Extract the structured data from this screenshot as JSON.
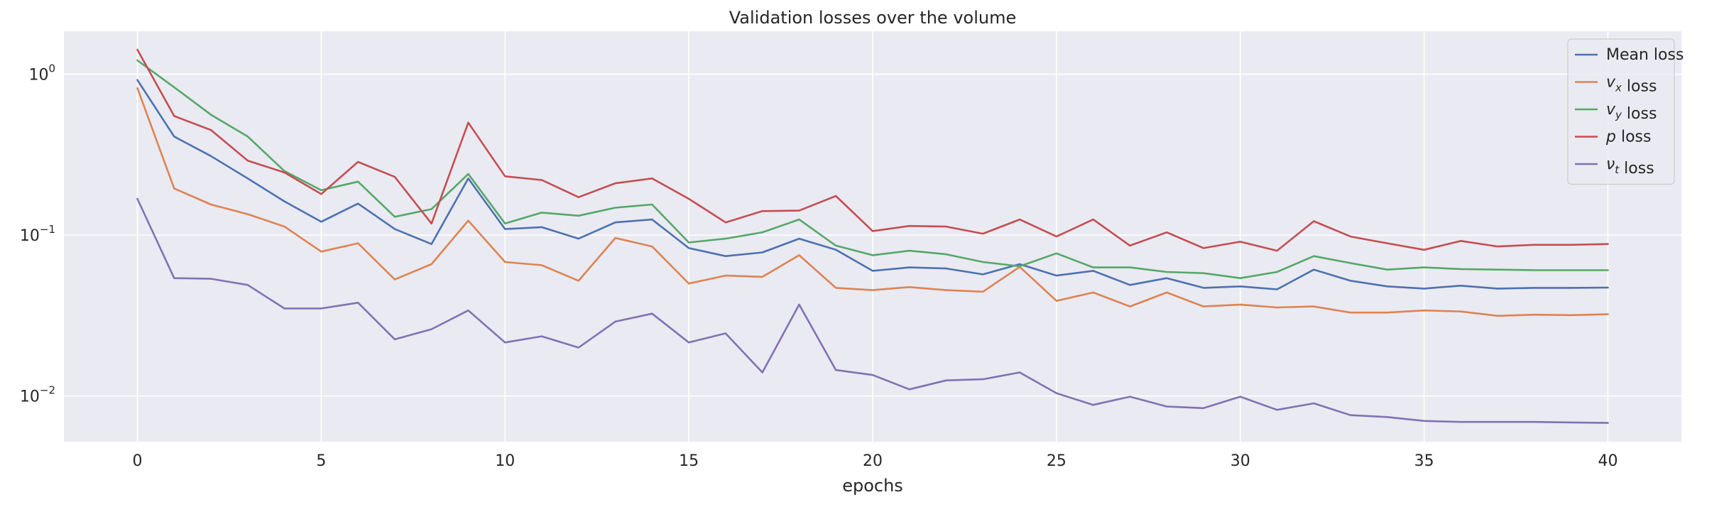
{
  "chart_data": {
    "type": "line",
    "title": "Validation losses over the volume",
    "xlabel": "epochs",
    "ylabel": "",
    "yscale": "log",
    "xlim": [
      -2,
      42
    ],
    "ylim": [
      0.0052,
      1.85
    ],
    "grid": true,
    "legend_position": "top-right",
    "xticks": [
      0,
      5,
      10,
      15,
      20,
      25,
      30,
      35,
      40
    ],
    "xtick_labels": [
      "0",
      "5",
      "10",
      "15",
      "20",
      "25",
      "30",
      "35",
      "40"
    ],
    "yticks": [
      1,
      0.1,
      0.01
    ],
    "ytick_labels": [
      {
        "base": "10",
        "exp": "0"
      },
      {
        "base": "10",
        "exp": "−1"
      },
      {
        "base": "10",
        "exp": "−2"
      }
    ],
    "x": [
      0,
      1,
      2,
      3,
      4,
      5,
      6,
      7,
      8,
      9,
      10,
      11,
      12,
      13,
      14,
      15,
      16,
      17,
      18,
      19,
      20,
      21,
      22,
      23,
      24,
      25,
      26,
      27,
      28,
      29,
      30,
      31,
      32,
      33,
      34,
      35,
      36,
      37,
      38,
      39,
      40
    ],
    "series": [
      {
        "name": "Mean loss",
        "legend_parts": [
          {
            "t": "Mean loss",
            "italic": false,
            "sub": ""
          }
        ],
        "color": "#4c72b0",
        "values": [
          0.92,
          0.41,
          0.31,
          0.225,
          0.162,
          0.121,
          0.157,
          0.109,
          0.088,
          0.225,
          0.109,
          0.112,
          0.095,
          0.12,
          0.125,
          0.083,
          0.074,
          0.078,
          0.095,
          0.081,
          0.06,
          0.063,
          0.062,
          0.057,
          0.066,
          0.056,
          0.06,
          0.049,
          0.054,
          0.047,
          0.048,
          0.046,
          0.061,
          0.052,
          0.048,
          0.0465,
          0.0485,
          0.0465,
          0.047,
          0.047,
          0.0472
        ]
      },
      {
        "name": "v_x loss",
        "legend_parts": [
          {
            "t": "v",
            "italic": true,
            "sub": "x"
          },
          {
            "t": " loss",
            "italic": false,
            "sub": ""
          }
        ],
        "color": "#dd8452",
        "values": [
          0.82,
          0.195,
          0.155,
          0.135,
          0.113,
          0.079,
          0.089,
          0.053,
          0.066,
          0.123,
          0.068,
          0.065,
          0.052,
          0.096,
          0.085,
          0.05,
          0.056,
          0.055,
          0.075,
          0.047,
          0.0455,
          0.0475,
          0.0455,
          0.0445,
          0.0635,
          0.039,
          0.044,
          0.036,
          0.044,
          0.036,
          0.037,
          0.0355,
          0.036,
          0.033,
          0.033,
          0.034,
          0.0335,
          0.0315,
          0.032,
          0.0318,
          0.0322
        ]
      },
      {
        "name": "v_y loss",
        "legend_parts": [
          {
            "t": "v",
            "italic": true,
            "sub": "y"
          },
          {
            "t": " loss",
            "italic": false,
            "sub": ""
          }
        ],
        "color": "#55a868",
        "values": [
          1.22,
          0.83,
          0.56,
          0.41,
          0.25,
          0.19,
          0.215,
          0.13,
          0.145,
          0.24,
          0.118,
          0.138,
          0.132,
          0.148,
          0.155,
          0.09,
          0.095,
          0.104,
          0.125,
          0.086,
          0.075,
          0.08,
          0.076,
          0.068,
          0.064,
          0.077,
          0.063,
          0.063,
          0.059,
          0.058,
          0.054,
          0.059,
          0.074,
          0.067,
          0.061,
          0.063,
          0.0615,
          0.061,
          0.0605,
          0.0605,
          0.0605
        ]
      },
      {
        "name": "p loss",
        "legend_parts": [
          {
            "t": "p",
            "italic": true,
            "sub": ""
          },
          {
            "t": " loss",
            "italic": false,
            "sub": ""
          }
        ],
        "color": "#c44e52",
        "values": [
          1.42,
          0.55,
          0.45,
          0.29,
          0.245,
          0.18,
          0.285,
          0.23,
          0.118,
          0.5,
          0.232,
          0.22,
          0.172,
          0.21,
          0.225,
          0.168,
          0.12,
          0.141,
          0.142,
          0.175,
          0.106,
          0.114,
          0.113,
          0.102,
          0.125,
          0.098,
          0.125,
          0.086,
          0.104,
          0.083,
          0.091,
          0.08,
          0.122,
          0.098,
          0.089,
          0.081,
          0.092,
          0.085,
          0.087,
          0.087,
          0.088
        ]
      },
      {
        "name": "nu_t loss",
        "legend_parts": [
          {
            "t": "ν",
            "italic": true,
            "sub": "t"
          },
          {
            "t": " loss",
            "italic": false,
            "sub": ""
          }
        ],
        "color": "#8172b3",
        "values": [
          0.168,
          0.054,
          0.0535,
          0.049,
          0.035,
          0.035,
          0.038,
          0.0225,
          0.026,
          0.034,
          0.0215,
          0.0235,
          0.02,
          0.029,
          0.0325,
          0.0215,
          0.0245,
          0.014,
          0.037,
          0.0145,
          0.0135,
          0.011,
          0.0125,
          0.0127,
          0.014,
          0.0104,
          0.0088,
          0.0099,
          0.0086,
          0.0084,
          0.0099,
          0.0082,
          0.009,
          0.0076,
          0.0074,
          0.007,
          0.0069,
          0.0069,
          0.0069,
          0.00685,
          0.0068
        ]
      }
    ]
  }
}
